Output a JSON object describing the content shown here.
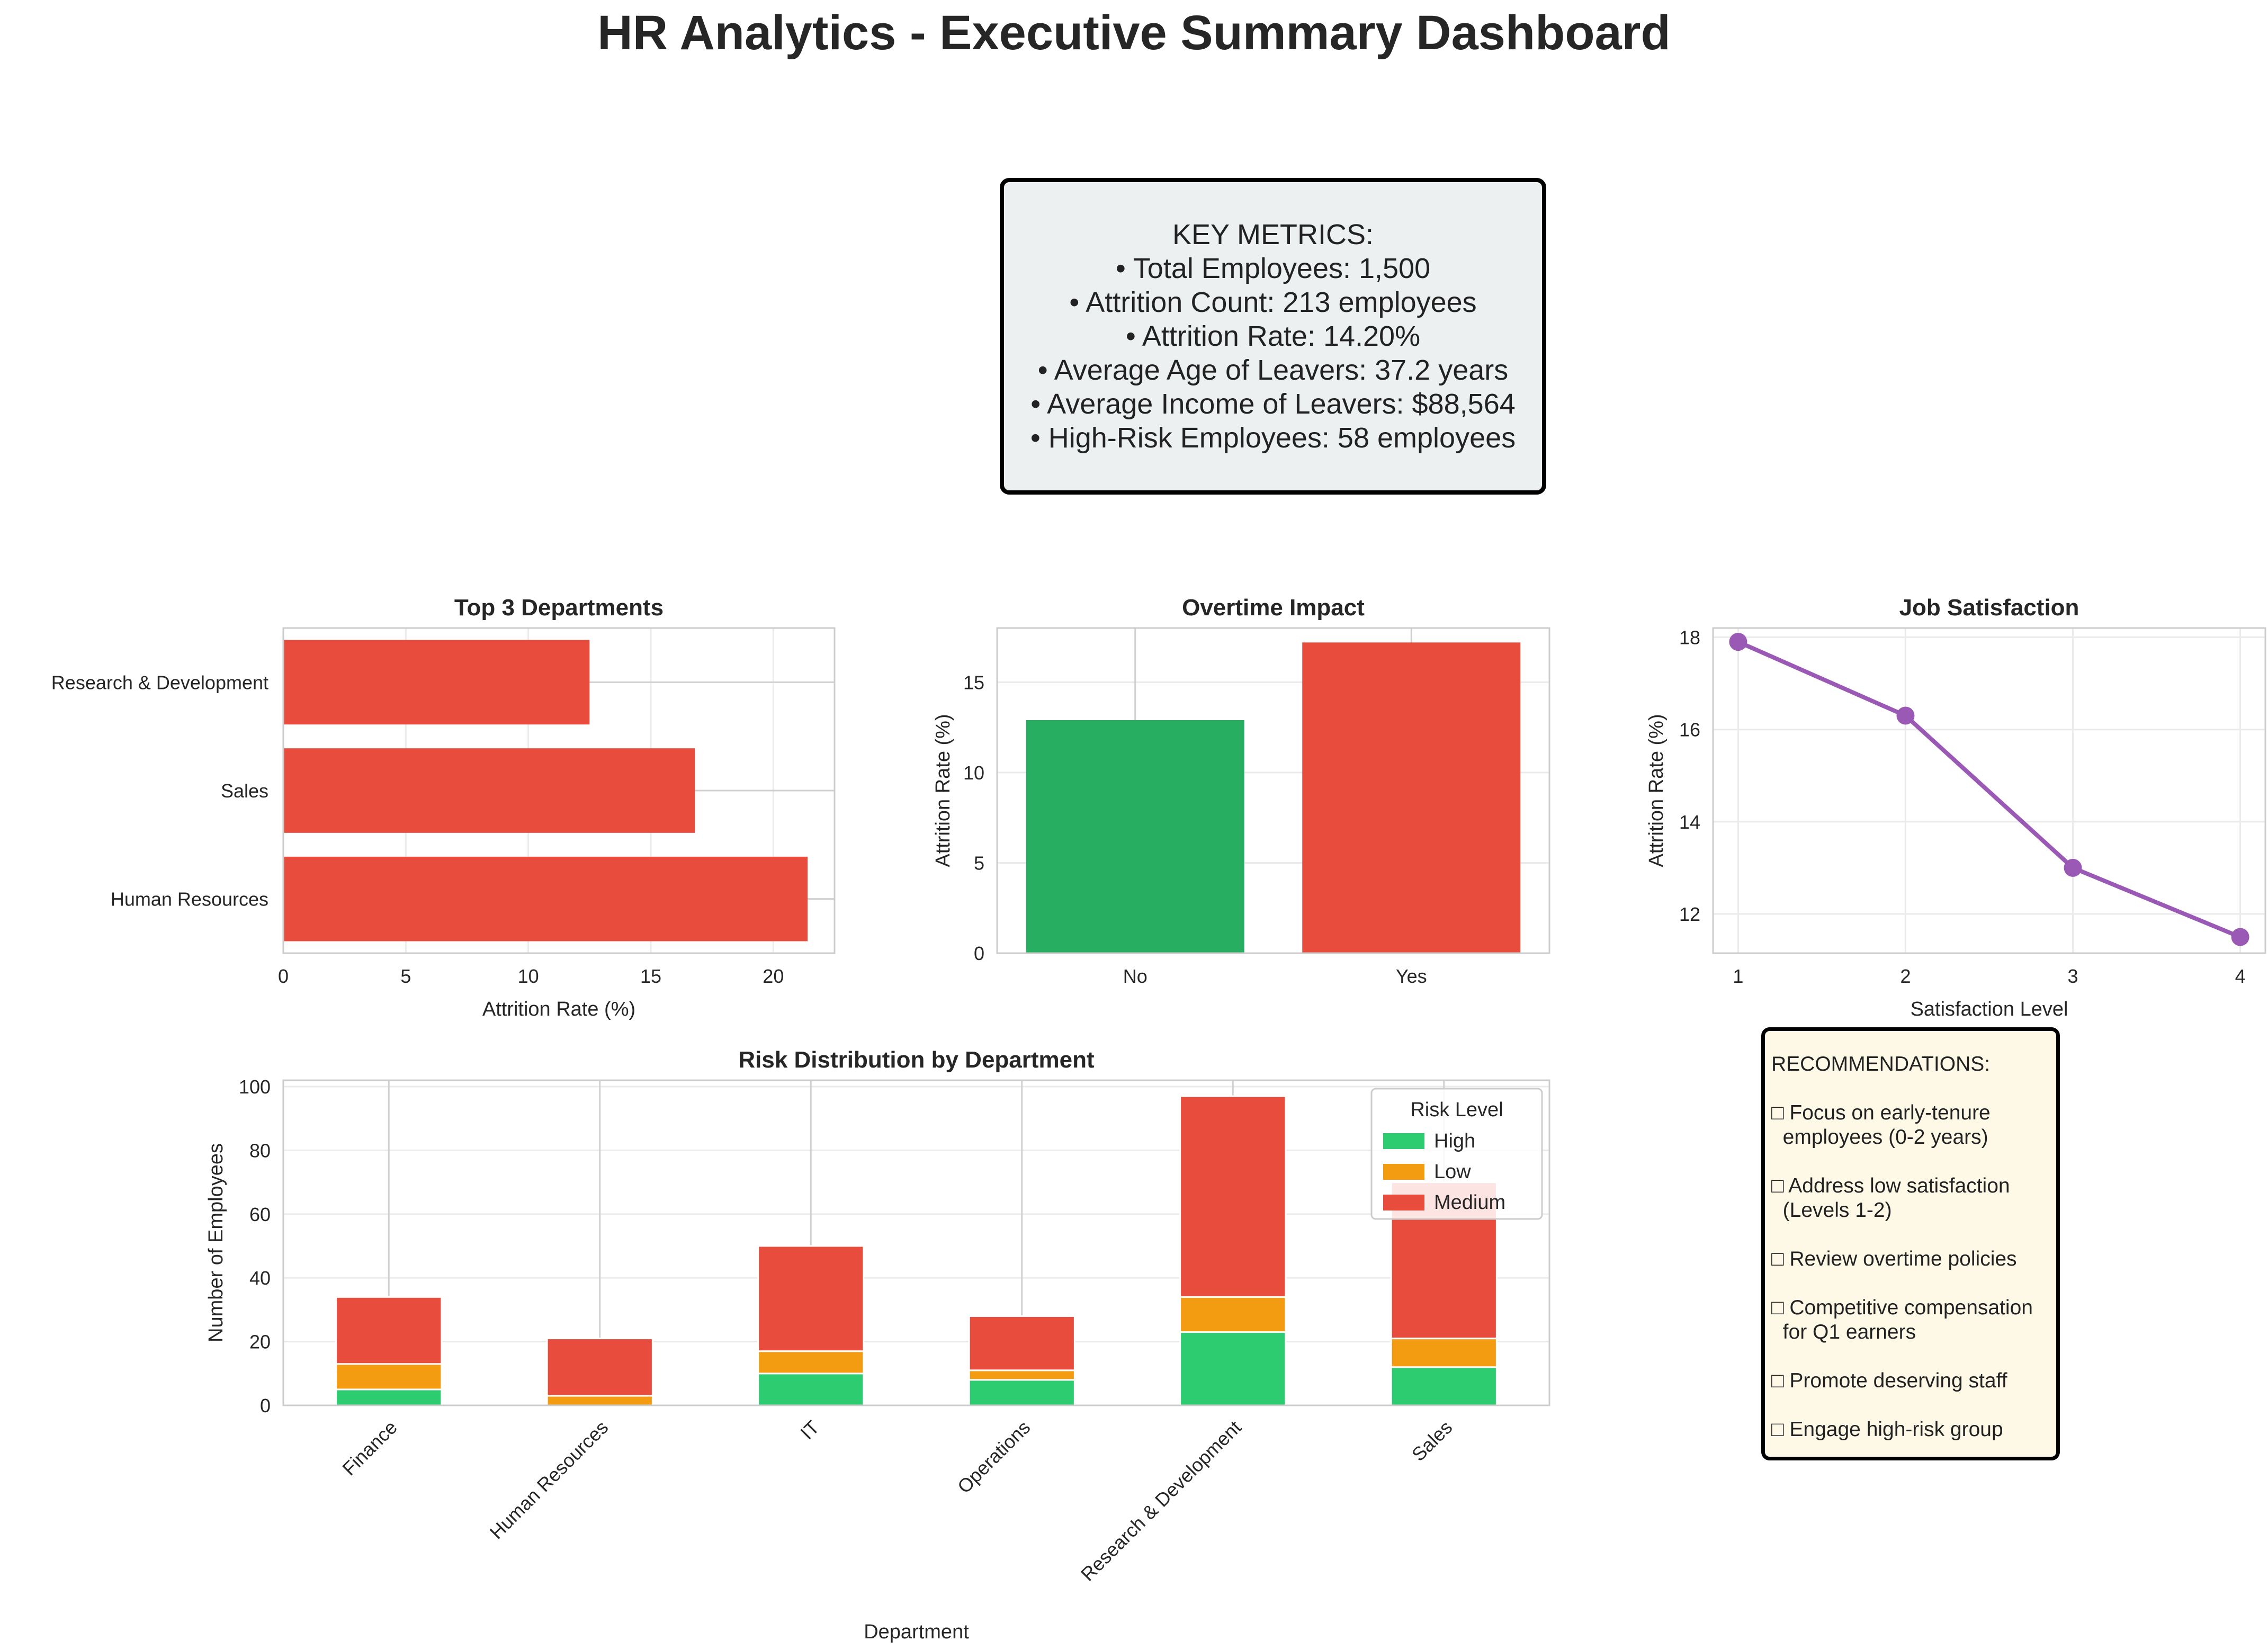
{
  "title": "HR Analytics - Executive Summary Dashboard",
  "metrics": {
    "heading": "KEY METRICS:",
    "lines": [
      "• Total Employees: 1,500",
      "• Attrition Count: 213 employees",
      "• Attrition Rate: 14.20%",
      "• Average Age of Leavers: 37.2 years",
      "• Average Income of Leavers: $88,564",
      "• High-Risk Employees: 58 employees"
    ]
  },
  "recommendations": {
    "heading": "RECOMMENDATIONS:",
    "glyph": "□",
    "items": [
      "Focus on early-tenure\n  employees (0-2 years)",
      "Address low satisfaction\n  (Levels 1-2)",
      "Review overtime policies",
      "Competitive compensation\n  for Q1 earners",
      "Promote deserving staff",
      "Engage high-risk group"
    ]
  },
  "colors": {
    "red": "#e74c3c",
    "green": "#27ae60",
    "green_light": "#2ecc71",
    "orange": "#f39c12",
    "purple": "#9b59b6"
  },
  "chart_data": [
    {
      "type": "bar",
      "orientation": "horizontal",
      "title": "Top 3 Departments",
      "xlabel": "Attrition Rate (%)",
      "ylabel": "",
      "categories": [
        "Human Resources",
        "Sales",
        "Research & Development"
      ],
      "values": [
        21.4,
        16.8,
        12.5
      ],
      "xlim": [
        0,
        22.5
      ],
      "xticks": [
        0,
        5,
        10,
        15,
        20
      ],
      "grid": true
    },
    {
      "type": "bar",
      "title": "Overtime Impact",
      "xlabel": "",
      "ylabel": "Attrition Rate (%)",
      "categories": [
        "No",
        "Yes"
      ],
      "values": [
        12.9,
        17.2
      ],
      "ylim": [
        0,
        18
      ],
      "yticks": [
        0,
        5,
        10,
        15
      ],
      "grid": true
    },
    {
      "type": "line",
      "title": "Job Satisfaction",
      "xlabel": "Satisfaction Level",
      "ylabel": "Attrition Rate (%)",
      "x": [
        1,
        2,
        3,
        4
      ],
      "y": [
        17.9,
        16.3,
        13.0,
        11.5
      ],
      "ylim": [
        11.15,
        18.2
      ],
      "yticks": [
        12,
        14,
        16,
        18
      ],
      "xticks": [
        1,
        2,
        3,
        4
      ],
      "markers": true,
      "grid": true
    },
    {
      "type": "bar",
      "stacked": true,
      "title": "Risk Distribution by Department",
      "xlabel": "Department",
      "ylabel": "Number of Employees",
      "categories": [
        "Finance",
        "Human Resources",
        "IT",
        "Operations",
        "Research & Development",
        "Sales"
      ],
      "series": [
        {
          "name": "High",
          "values": [
            5,
            0,
            10,
            8,
            23,
            12
          ]
        },
        {
          "name": "Low",
          "values": [
            8,
            3,
            7,
            3,
            11,
            9
          ]
        },
        {
          "name": "Medium",
          "values": [
            21,
            18,
            33,
            17,
            63,
            49
          ]
        }
      ],
      "ylim": [
        0,
        102
      ],
      "yticks": [
        0,
        20,
        40,
        60,
        80,
        100
      ],
      "legend_title": "Risk Level",
      "legend_position": "top-right",
      "grid": true
    }
  ]
}
